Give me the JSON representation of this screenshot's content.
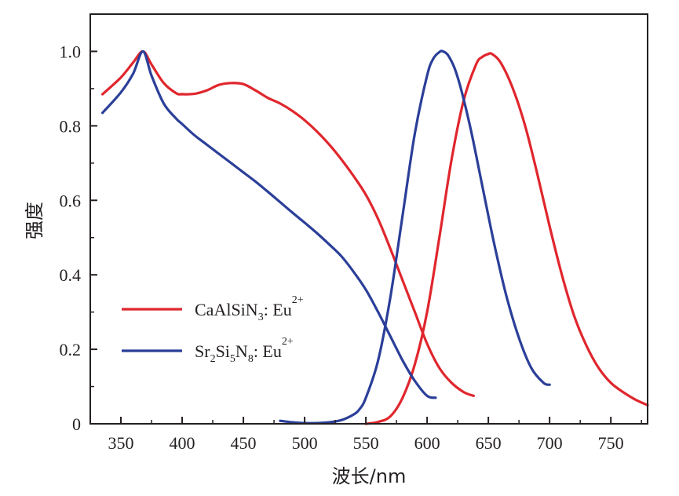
{
  "chart_data": {
    "type": "line",
    "title": "",
    "xlabel": "波长/nm",
    "ylabel": "强度",
    "xlim": [
      325,
      780
    ],
    "ylim": [
      0,
      1.1
    ],
    "xticks": [
      350,
      400,
      450,
      500,
      550,
      600,
      650,
      700,
      750
    ],
    "yticks": [
      0,
      0.2,
      0.4,
      0.6,
      0.8,
      1.0
    ],
    "ytick_labels": [
      "0",
      "0.2",
      "0.4",
      "0.6",
      "0.8",
      "1.0"
    ],
    "grid": false,
    "legend_position": "lower-left",
    "series": [
      {
        "name": "CaAlSiN3: Eu2+",
        "legend": {
          "base": "CaAlSiN",
          "sub": "3",
          "tail": ": Eu",
          "sup": "2+"
        },
        "color": "#e0262d",
        "segments": [
          {
            "x": [
              335,
              350,
              360,
              368,
              375,
              385,
              395,
              400,
              410,
              420,
              430,
              440,
              450,
              460,
              470,
              480,
              490,
              500,
              510,
              520,
              530,
              540,
              550,
              560,
              570,
              580,
              590,
              600,
              610,
              620,
              630,
              638
            ],
            "y": [
              0.885,
              0.93,
              0.97,
              1.0,
              0.965,
              0.915,
              0.888,
              0.885,
              0.886,
              0.895,
              0.91,
              0.915,
              0.912,
              0.895,
              0.875,
              0.86,
              0.84,
              0.815,
              0.785,
              0.75,
              0.71,
              0.665,
              0.615,
              0.55,
              0.47,
              0.385,
              0.3,
              0.215,
              0.15,
              0.11,
              0.085,
              0.075
            ]
          },
          {
            "x": [
              550,
              560,
              570,
              580,
              590,
              600,
              610,
              620,
              630,
              640,
              645,
              650,
              653,
              660,
              670,
              680,
              690,
              700,
              710,
              720,
              730,
              740,
              750,
              760,
              770,
              780
            ],
            "y": [
              0.0,
              0.005,
              0.02,
              0.07,
              0.16,
              0.3,
              0.5,
              0.71,
              0.87,
              0.965,
              0.985,
              0.993,
              0.993,
              0.97,
              0.9,
              0.8,
              0.67,
              0.53,
              0.4,
              0.29,
              0.21,
              0.15,
              0.11,
              0.085,
              0.065,
              0.05
            ]
          }
        ]
      },
      {
        "name": "Sr2Si5N8: Eu2+",
        "legend": {
          "base": "Sr",
          "sub": "2",
          "mid": "Si",
          "sub2": "5",
          "mid2": "N",
          "sub3": "8",
          "tail": ": Eu",
          "sup": "2+"
        },
        "color": "#2b3f99",
        "segments": [
          {
            "x": [
              335,
              350,
              360,
              368,
              375,
              385,
              395,
              400,
              410,
              420,
              430,
              440,
              450,
              460,
              470,
              480,
              490,
              500,
              510,
              520,
              530,
              540,
              550,
              560,
              570,
              580,
              590,
              600,
              607
            ],
            "y": [
              0.835,
              0.89,
              0.94,
              1.0,
              0.935,
              0.86,
              0.82,
              0.805,
              0.775,
              0.75,
              0.725,
              0.7,
              0.675,
              0.65,
              0.623,
              0.595,
              0.567,
              0.54,
              0.512,
              0.482,
              0.45,
              0.408,
              0.36,
              0.3,
              0.235,
              0.17,
              0.115,
              0.075,
              0.07
            ]
          },
          {
            "x": [
              480,
              490,
              500,
              510,
              520,
              530,
              540,
              545,
              550,
              560,
              570,
              580,
              590,
              600,
              605,
              610,
              613,
              618,
              625,
              635,
              645,
              655,
              665,
              675,
              685,
              695,
              700
            ],
            "y": [
              0.008,
              0.004,
              0.002,
              0.002,
              0.004,
              0.01,
              0.025,
              0.04,
              0.07,
              0.17,
              0.34,
              0.56,
              0.78,
              0.935,
              0.98,
              0.998,
              1.0,
              0.985,
              0.93,
              0.8,
              0.64,
              0.48,
              0.34,
              0.23,
              0.15,
              0.11,
              0.105
            ]
          }
        ]
      }
    ]
  }
}
